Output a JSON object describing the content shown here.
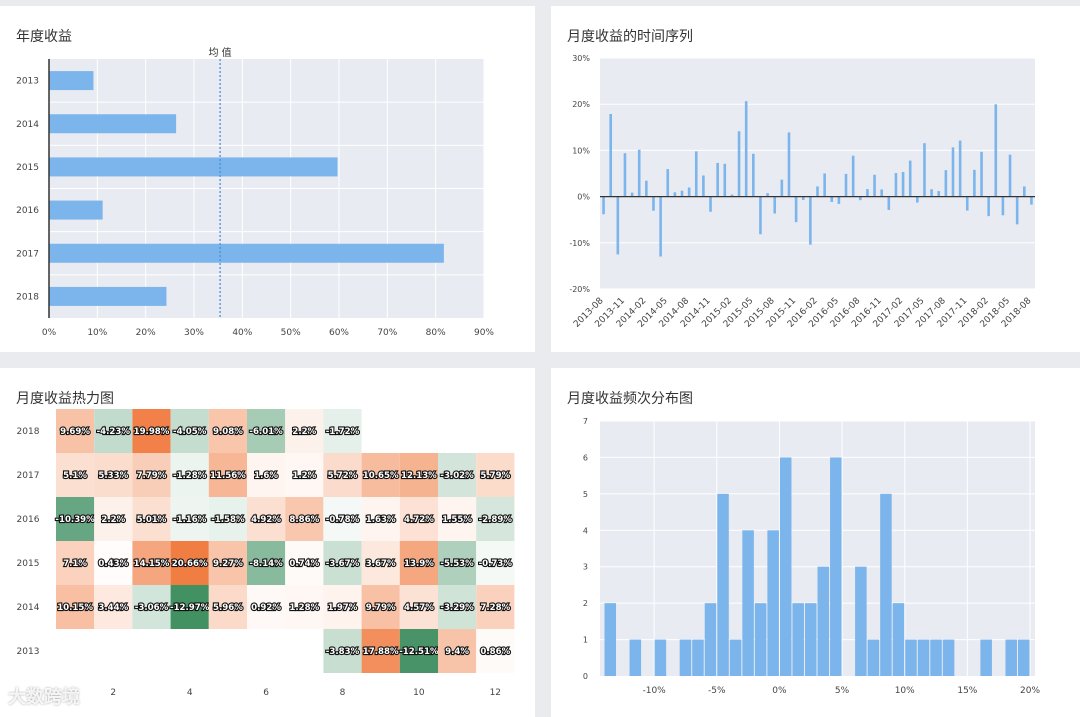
{
  "chart_data": [
    {
      "type": "bar",
      "orientation": "horizontal",
      "title": "年度收益",
      "categories": [
        "2013",
        "2014",
        "2015",
        "2016",
        "2017",
        "2018"
      ],
      "values": [
        9.2,
        26.3,
        59.7,
        11.1,
        81.7,
        24.3
      ],
      "mean_value": 35.4,
      "mean_label": "均 值",
      "xlim": [
        0,
        90
      ],
      "xticks": [
        "0%",
        "10%",
        "20%",
        "30%",
        "40%",
        "50%",
        "60%",
        "70%",
        "80%",
        "90%"
      ],
      "grid": true
    },
    {
      "type": "bar",
      "title": "月度收益的时间序列",
      "ylim": [
        -20,
        30
      ],
      "yticks": [
        "-20%",
        "-10%",
        "0%",
        "10%",
        "20%",
        "30%"
      ],
      "xticks": [
        "2013-08",
        "2013-11",
        "2014-02",
        "2014-05",
        "2014-08",
        "2014-11",
        "2015-02",
        "2015-05",
        "2015-08",
        "2015-11",
        "2016-02",
        "2016-05",
        "2016-08",
        "2016-11",
        "2017-02",
        "2017-05",
        "2017-08",
        "2017-11",
        "2018-02",
        "2018-05",
        "2018-08"
      ],
      "values": [
        -3.83,
        17.88,
        -12.51,
        9.4,
        0.86,
        10.15,
        3.44,
        -3.06,
        -12.97,
        5.96,
        0.92,
        1.28,
        1.97,
        9.79,
        4.57,
        -3.29,
        7.28,
        7.1,
        0.43,
        14.15,
        20.66,
        9.27,
        -8.14,
        0.74,
        -3.67,
        3.67,
        13.9,
        -5.53,
        -0.73,
        -10.39,
        2.2,
        5.01,
        -1.16,
        -1.58,
        4.92,
        8.86,
        -0.78,
        1.63,
        4.72,
        1.55,
        -2.89,
        5.1,
        5.33,
        7.79,
        -1.28,
        11.56,
        1.6,
        1.2,
        5.72,
        10.65,
        12.13,
        -3.02,
        5.79,
        9.69,
        -4.23,
        19.98,
        -4.05,
        9.08,
        -6.01,
        2.2,
        -1.72
      ],
      "grid": true
    },
    {
      "type": "heatmap",
      "title": "月度收益热力图",
      "years": [
        "2018",
        "2017",
        "2016",
        "2015",
        "2014",
        "2013"
      ],
      "xticks": [
        "2",
        "4",
        "6",
        "8",
        "10",
        "12"
      ],
      "rows": [
        [
          "9.69%",
          "-4.23%",
          "19.98%",
          "-4.05%",
          "9.08%",
          "-6.01%",
          "2.2%",
          "-1.72%",
          "",
          "",
          "",
          ""
        ],
        [
          "5.1%",
          "5.33%",
          "7.79%",
          "-1.28%",
          "11.56%",
          "1.6%",
          "1.2%",
          "5.72%",
          "10.65%",
          "12.13%",
          "-3.02%",
          "5.79%"
        ],
        [
          "-10.39%",
          "2.2%",
          "5.01%",
          "-1.16%",
          "-1.58%",
          "4.92%",
          "8.86%",
          "-0.78%",
          "1.63%",
          "4.72%",
          "1.55%",
          "-2.89%"
        ],
        [
          "7.1%",
          "0.43%",
          "14.15%",
          "20.66%",
          "9.27%",
          "-8.14%",
          "0.74%",
          "-3.67%",
          "3.67%",
          "13.9%",
          "-5.53%",
          "-0.73%"
        ],
        [
          "10.15%",
          "3.44%",
          "-3.06%",
          "-12.97%",
          "5.96%",
          "0.92%",
          "1.28%",
          "1.97%",
          "9.79%",
          "4.57%",
          "-3.29%",
          "7.28%"
        ],
        [
          "",
          "",
          "",
          "",
          "",
          "",
          "",
          "-3.83%",
          "17.88%",
          "-12.51%",
          "9.4%",
          "0.86%"
        ]
      ],
      "values": [
        [
          9.69,
          -4.23,
          19.98,
          -4.05,
          9.08,
          -6.01,
          2.2,
          -1.72,
          null,
          null,
          null,
          null
        ],
        [
          5.1,
          5.33,
          7.79,
          -1.28,
          11.56,
          1.6,
          1.2,
          5.72,
          10.65,
          12.13,
          -3.02,
          5.79
        ],
        [
          -10.39,
          2.2,
          5.01,
          -1.16,
          -1.58,
          4.92,
          8.86,
          -0.78,
          1.63,
          4.72,
          1.55,
          -2.89
        ],
        [
          7.1,
          0.43,
          14.15,
          20.66,
          9.27,
          -8.14,
          0.74,
          -3.67,
          3.67,
          13.9,
          -5.53,
          -0.73
        ],
        [
          10.15,
          3.44,
          -3.06,
          -12.97,
          5.96,
          0.92,
          1.28,
          1.97,
          9.79,
          4.57,
          -3.29,
          7.28
        ],
        [
          null,
          null,
          null,
          null,
          null,
          null,
          null,
          -3.83,
          17.88,
          -12.51,
          9.4,
          0.86
        ]
      ],
      "positive_color": "#f07b3f",
      "negative_color": "#3a8c5c"
    },
    {
      "type": "bar",
      "subtype": "histogram",
      "title": "月度收益频次分布图",
      "bin_start": -14,
      "bin_width": 1,
      "counts": [
        2,
        0,
        1,
        0,
        1,
        0,
        1,
        1,
        2,
        5,
        1,
        4,
        2,
        4,
        6,
        2,
        2,
        3,
        6,
        0,
        3,
        1,
        5,
        2,
        1,
        1,
        1,
        1,
        0,
        0,
        1,
        0,
        1,
        1
      ],
      "ylim": [
        0,
        7
      ],
      "yticks": [
        "0",
        "1",
        "2",
        "3",
        "4",
        "5",
        "6",
        "7"
      ],
      "xticks": [
        "-10%",
        "-5%",
        "0%",
        "5%",
        "10%",
        "15%",
        "20%"
      ],
      "grid": true
    }
  ],
  "colors": {
    "bar": "#7cb5ec",
    "axis_zero": "#333333",
    "mean_line": "#4a90d9"
  },
  "watermark": "大数跨境"
}
